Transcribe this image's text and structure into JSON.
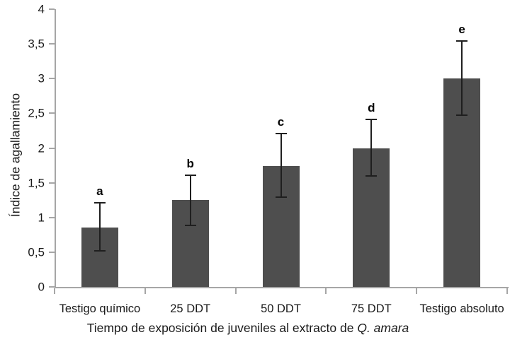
{
  "chart_data": {
    "type": "bar",
    "categories": [
      "Testigo químico",
      "25 DDT",
      "50 DDT",
      "75 DDT",
      "Testigo absoluto"
    ],
    "values": [
      0.86,
      1.25,
      1.74,
      2.0,
      3.0
    ],
    "error_low": [
      0.52,
      0.89,
      1.29,
      1.6,
      2.47
    ],
    "error_high": [
      1.21,
      1.61,
      2.21,
      2.41,
      3.54
    ],
    "letters": [
      "a",
      "b",
      "c",
      "d",
      "e"
    ],
    "ylabel": "Índice de agallamiento",
    "xlabel_regular": "Tiempo de exposición de juveniles al extracto de ",
    "xlabel_italic": "Q. amara",
    "ylim": [
      0,
      4
    ],
    "y_ticks": [
      0,
      0.5,
      1,
      1.5,
      2,
      2.5,
      3,
      3.5,
      4
    ],
    "y_tick_labels": [
      "0",
      "0,5",
      "1",
      "1,5",
      "2",
      "2,5",
      "3",
      "3,5",
      "4"
    ],
    "bar_color": "#4e4e4e",
    "axis_color": "#a6a6a6",
    "error_color": "#1f1f1f",
    "legend": "none",
    "grid": "off"
  }
}
